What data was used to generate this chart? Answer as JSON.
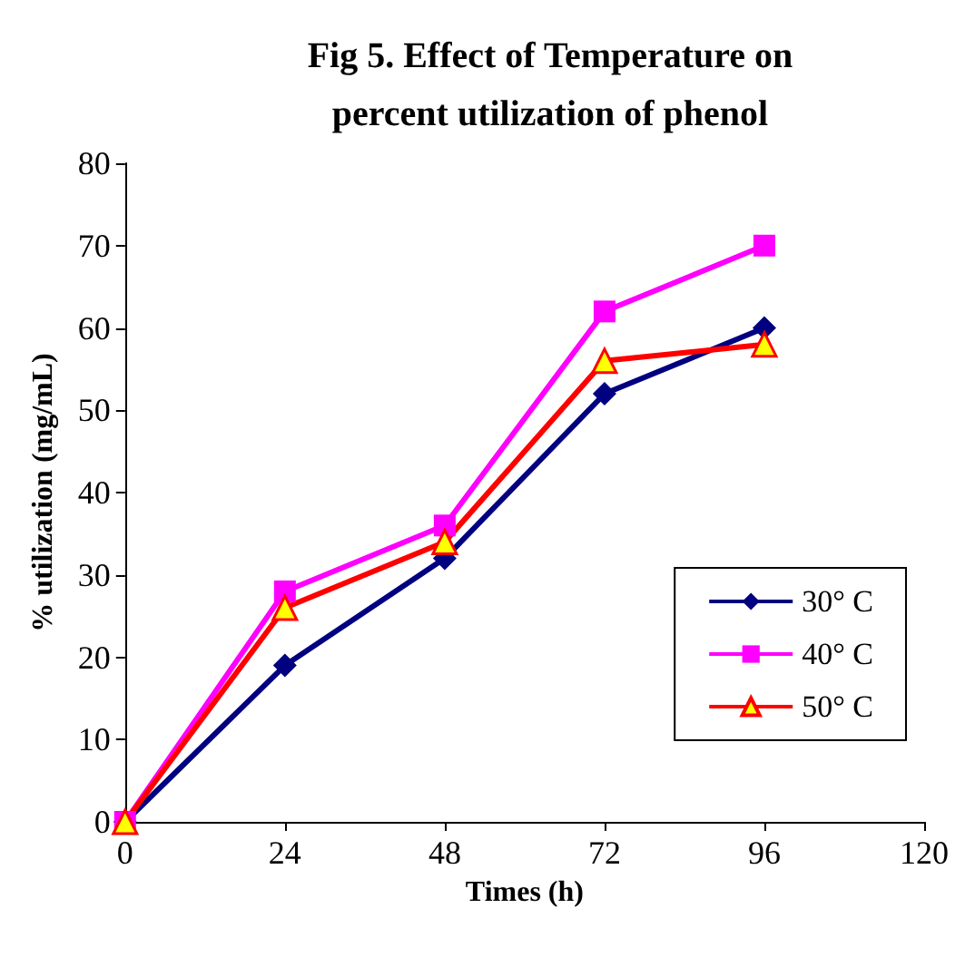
{
  "chart_data": {
    "type": "line",
    "title": "Fig 5. Effect of Temperature on\npercent utilization of phenol",
    "xlabel": "Times (h)",
    "ylabel": "% utilization (mg/mL)",
    "x": [
      0,
      24,
      48,
      72,
      96
    ],
    "series": [
      {
        "name": "30° C",
        "color": "#000080",
        "marker": "diamond",
        "values": [
          0,
          19,
          32,
          52,
          60
        ]
      },
      {
        "name": "40° C",
        "color": "#ff00ff",
        "marker": "square",
        "values": [
          0,
          28,
          36,
          62,
          70
        ]
      },
      {
        "name": "50° C",
        "color": "#ff0000",
        "marker": "triangle",
        "values": [
          0,
          26,
          34,
          56,
          58
        ]
      }
    ],
    "xlim": [
      0,
      120
    ],
    "xticks": [
      0,
      24,
      48,
      72,
      96,
      120
    ],
    "ylim": [
      0,
      80
    ],
    "yticks": [
      0,
      10,
      20,
      30,
      40,
      50,
      60,
      70,
      80
    ],
    "grid": false,
    "legend": "right",
    "line_style": "solid"
  }
}
